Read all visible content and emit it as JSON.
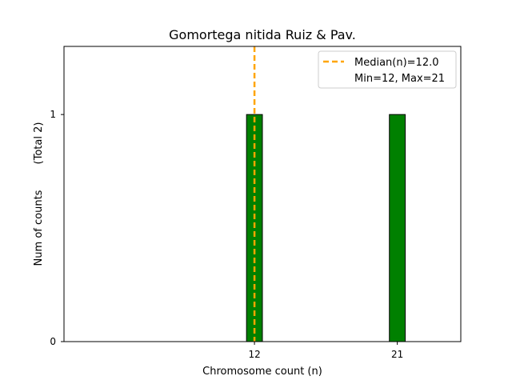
{
  "chart_data": {
    "type": "bar",
    "title": "Gomortega nitida Ruiz & Pav.",
    "xlabel": "Chromosome count (n)",
    "ylabel": "Num of counts",
    "ylabel_total": "(Total 2)",
    "xlim": [
      0,
      25
    ],
    "ylim": [
      0,
      1.3
    ],
    "bar_width": 1,
    "bars": [
      {
        "x": 12,
        "value": 1
      },
      {
        "x": 21,
        "value": 1
      }
    ],
    "x_ticks": [
      12,
      21
    ],
    "y_ticks": [
      0,
      1
    ],
    "median": 12.0,
    "legend": {
      "position": "top-right",
      "median_label": "Median(n)=12.0",
      "range_label": "Min=12, Max=21"
    },
    "colors": {
      "bar_fill": "#008000",
      "bar_edge": "#000000",
      "median_line": "#FFA500"
    },
    "grid": false
  }
}
